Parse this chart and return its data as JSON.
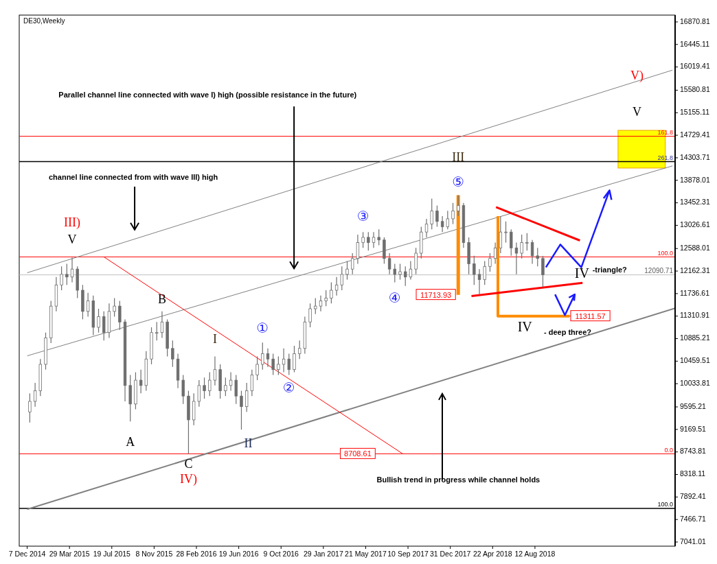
{
  "chart_data": {
    "type": "candlestick",
    "title": "DE30,Weekly",
    "color": "#6e6e6e",
    "xlim": [
      "2014-11-16",
      "2019-08-18"
    ],
    "ylim": [
      6963,
      17000
    ],
    "xticks": [
      {
        "value": "2014-12-07",
        "label": "7 Dec 2014"
      },
      {
        "value": "2015-03-29",
        "label": "29 Mar 2015"
      },
      {
        "value": "2015-07-19",
        "label": "19 Jul 2015"
      },
      {
        "value": "2015-11-08",
        "label": "8 Nov 2015"
      },
      {
        "value": "2016-02-28",
        "label": "28 Feb 2016"
      },
      {
        "value": "2016-06-19",
        "label": "19 Jun 2016"
      },
      {
        "value": "2016-10-09",
        "label": "9 Oct 2016"
      },
      {
        "value": "2017-01-29",
        "label": "29 Jan 2017"
      },
      {
        "value": "2017-05-21",
        "label": "21 May 2017"
      },
      {
        "value": "2017-09-10",
        "label": "10 Sep 2017"
      },
      {
        "value": "2017-12-31",
        "label": "31 Dec 2017"
      },
      {
        "value": "2018-04-22",
        "label": "22 Apr 2018"
      },
      {
        "value": "2018-08-12",
        "label": "12 Aug 2018"
      }
    ],
    "yticks": [
      16870.81,
      16445.11,
      16019.41,
      15580.81,
      15155.11,
      14729.41,
      14303.71,
      13878.01,
      13452.31,
      13026.61,
      12588.01,
      12162.31,
      11736.61,
      11310.91,
      10885.21,
      10459.51,
      10033.81,
      9595.21,
      9169.51,
      8743.81,
      8318.11,
      7892.41,
      7466.71,
      7041.01
    ],
    "x": [
      "2014-12-14",
      "2014-12-28",
      "2015-01-11",
      "2015-01-25",
      "2015-02-08",
      "2015-02-22",
      "2015-03-08",
      "2015-03-22",
      "2015-04-05",
      "2015-04-19",
      "2015-05-03",
      "2015-05-17",
      "2015-05-31",
      "2015-06-14",
      "2015-06-28",
      "2015-07-12",
      "2015-07-26",
      "2015-08-09",
      "2015-08-23",
      "2015-09-06",
      "2015-09-20",
      "2015-10-04",
      "2015-10-18",
      "2015-11-01",
      "2015-11-15",
      "2015-11-29",
      "2015-12-13",
      "2015-12-27",
      "2016-01-10",
      "2016-01-24",
      "2016-02-07",
      "2016-02-21",
      "2016-03-06",
      "2016-03-20",
      "2016-04-03",
      "2016-04-17",
      "2016-05-01",
      "2016-05-15",
      "2016-05-29",
      "2016-06-12",
      "2016-06-26",
      "2016-07-10",
      "2016-07-24",
      "2016-08-07",
      "2016-08-21",
      "2016-09-04",
      "2016-09-18",
      "2016-10-02",
      "2016-10-16",
      "2016-10-30",
      "2016-11-13",
      "2016-11-27",
      "2016-12-11",
      "2016-12-25",
      "2017-01-08",
      "2017-01-22",
      "2017-02-05",
      "2017-02-19",
      "2017-03-05",
      "2017-03-19",
      "2017-04-02",
      "2017-04-16",
      "2017-04-30",
      "2017-05-14",
      "2017-05-28",
      "2017-06-11",
      "2017-06-25",
      "2017-07-09",
      "2017-07-23",
      "2017-08-06",
      "2017-08-20",
      "2017-09-03",
      "2017-09-17",
      "2017-10-01",
      "2017-10-15",
      "2017-10-29",
      "2017-11-12",
      "2017-11-26",
      "2017-12-10",
      "2017-12-24",
      "2018-01-07",
      "2018-01-21",
      "2018-02-04",
      "2018-02-18",
      "2018-03-04",
      "2018-03-18",
      "2018-04-01",
      "2018-04-15",
      "2018-04-29",
      "2018-05-13",
      "2018-05-27",
      "2018-06-10",
      "2018-06-24",
      "2018-07-08",
      "2018-07-22",
      "2018-08-05",
      "2018-08-19",
      "2018-09-02"
    ],
    "ohlc": [
      [
        9500,
        9850,
        9300,
        9700
      ],
      [
        9700,
        10050,
        9600,
        9900
      ],
      [
        9900,
        10500,
        9800,
        10400
      ],
      [
        10400,
        11000,
        10300,
        10900
      ],
      [
        10900,
        11600,
        10800,
        11500
      ],
      [
        11500,
        12050,
        11400,
        11900
      ],
      [
        11900,
        12250,
        11800,
        12100
      ],
      [
        12100,
        12300,
        11900,
        12050
      ],
      [
        12050,
        12415,
        11950,
        12200
      ],
      [
        12200,
        12250,
        11650,
        11800
      ],
      [
        11800,
        11900,
        11250,
        11400
      ],
      [
        11400,
        11750,
        11300,
        11600
      ],
      [
        11600,
        11700,
        10950,
        11100
      ],
      [
        11100,
        11450,
        11000,
        11300
      ],
      [
        11300,
        11400,
        10850,
        11000
      ],
      [
        11000,
        11550,
        10900,
        11400
      ],
      [
        11400,
        11650,
        11300,
        11500
      ],
      [
        11500,
        11600,
        11050,
        11200
      ],
      [
        11200,
        11250,
        9700,
        10000
      ],
      [
        10000,
        10200,
        9320,
        9650
      ],
      [
        9650,
        10250,
        9550,
        10100
      ],
      [
        10100,
        10300,
        9850,
        10000
      ],
      [
        10000,
        10650,
        9900,
        10500
      ],
      [
        10500,
        11100,
        10400,
        11000
      ],
      [
        11000,
        11200,
        10850,
        11000
      ],
      [
        11000,
        11400,
        10900,
        11200
      ],
      [
        11200,
        11250,
        10550,
        10700
      ],
      [
        10700,
        10850,
        10350,
        10500
      ],
      [
        10500,
        10600,
        9950,
        10100
      ],
      [
        10100,
        10200,
        9650,
        9800
      ],
      [
        9800,
        9900,
        8708.61,
        9350
      ],
      [
        9350,
        9850,
        9250,
        9700
      ],
      [
        9700,
        10100,
        9600,
        10000
      ],
      [
        10000,
        10150,
        9750,
        9900
      ],
      [
        9900,
        10250,
        9800,
        10100
      ],
      [
        10100,
        10550,
        10000,
        10300
      ],
      [
        10300,
        10400,
        9750,
        9900
      ],
      [
        9900,
        10150,
        9800,
        10000
      ],
      [
        10000,
        10250,
        9900,
        10100
      ],
      [
        10100,
        10200,
        9650,
        9800
      ],
      [
        9800,
        9900,
        9165,
        9600
      ],
      [
        9600,
        10050,
        9500,
        9900
      ],
      [
        9900,
        10300,
        9800,
        10200
      ],
      [
        10200,
        10550,
        10100,
        10400
      ],
      [
        10400,
        10810,
        10300,
        10600
      ],
      [
        10600,
        10700,
        10350,
        10500
      ],
      [
        10500,
        10600,
        10200,
        10300
      ],
      [
        10300,
        10550,
        10200,
        10400
      ],
      [
        10400,
        10700,
        10250,
        10500
      ],
      [
        10500,
        10600,
        10200,
        10300
      ],
      [
        10300,
        10750,
        10250,
        10600
      ],
      [
        10600,
        10850,
        10500,
        10700
      ],
      [
        10700,
        11300,
        10600,
        11200
      ],
      [
        11200,
        11550,
        11100,
        11450
      ],
      [
        11450,
        11650,
        11350,
        11500
      ],
      [
        11500,
        11700,
        11400,
        11600
      ],
      [
        11600,
        11800,
        11500,
        11650
      ],
      [
        11650,
        11950,
        11550,
        11800
      ],
      [
        11800,
        12050,
        11700,
        11900
      ],
      [
        11900,
        12250,
        11800,
        12100
      ],
      [
        12100,
        12350,
        12000,
        12200
      ],
      [
        12200,
        12500,
        12100,
        12400
      ],
      [
        12400,
        12850,
        12300,
        12700
      ],
      [
        12700,
        12900,
        12600,
        12800
      ],
      [
        12800,
        12900,
        12550,
        12700
      ],
      [
        12700,
        12900,
        12600,
        12800
      ],
      [
        12800,
        12950,
        12650,
        12750
      ],
      [
        12750,
        12800,
        12300,
        12400
      ],
      [
        12400,
        12500,
        12100,
        12200
      ],
      [
        12200,
        12300,
        11950,
        12100
      ],
      [
        12100,
        12300,
        12000,
        12150
      ],
      [
        12150,
        12250,
        11880,
        12050
      ],
      [
        12050,
        12350,
        12000,
        12200
      ],
      [
        12200,
        12600,
        12100,
        12500
      ],
      [
        12500,
        13000,
        12400,
        12900
      ],
      [
        12900,
        13150,
        12800,
        13050
      ],
      [
        13050,
        13530,
        12950,
        13300
      ],
      [
        13300,
        13400,
        13000,
        13100
      ],
      [
        13100,
        13200,
        12900,
        13000
      ],
      [
        13000,
        13300,
        12950,
        13150
      ],
      [
        13150,
        13450,
        13050,
        13300
      ],
      [
        13300,
        13596,
        13200,
        13400
      ],
      [
        13400,
        13450,
        12600,
        12700
      ],
      [
        12700,
        12800,
        12100,
        12300
      ],
      [
        12300,
        12450,
        11900,
        12100
      ],
      [
        12100,
        12200,
        11713.93,
        12000
      ],
      [
        12000,
        12350,
        11900,
        12250
      ],
      [
        12250,
        12500,
        12150,
        12400
      ],
      [
        12400,
        12700,
        12300,
        12600
      ],
      [
        12600,
        13200,
        12500,
        12900
      ],
      [
        12900,
        13100,
        12700,
        12900
      ],
      [
        12900,
        12950,
        12450,
        12600
      ],
      [
        12600,
        12700,
        12100,
        12500
      ],
      [
        12500,
        12850,
        12400,
        12700
      ],
      [
        12700,
        12880,
        12550,
        12700
      ],
      [
        12700,
        12750,
        12300,
        12450
      ],
      [
        12450,
        12600,
        12250,
        12400
      ],
      [
        12400,
        12450,
        11860,
        12090.71
      ]
    ],
    "series": [
      {
        "type": "line",
        "color": "#808080",
        "x": [
          "2014-12-07",
          "2019-08-11"
        ],
        "values": [
          12130,
          15960
        ]
      },
      {
        "type": "line",
        "color": "#808080",
        "x": [
          "2014-12-07",
          "2019-08-11"
        ],
        "values": [
          10560,
          14150
        ]
      },
      {
        "type": "line",
        "color": "#808080",
        "x": [
          "2014-12-07",
          "2019-08-18"
        ],
        "values": [
          7660,
          11460
        ]
      },
      {
        "type": "line",
        "color": "#ff0000",
        "x": [
          "2015-06-28",
          "2017-08-27"
        ],
        "values": [
          12430,
          8708.61
        ]
      },
      {
        "type": "line",
        "color": "#ff8c00",
        "x": [
          "2018-01-21",
          "2018-01-21"
        ],
        "values": [
          13596,
          11713.93
        ]
      },
      {
        "type": "line",
        "color": "#ff8c00",
        "x": [
          "2018-05-06",
          "2018-05-06",
          "2018-11-11"
        ],
        "values": [
          13200,
          11311.57,
          11311.57
        ]
      },
      {
        "type": "line",
        "color": "#ff0000",
        "x": [
          "2018-05-01",
          "2018-12-09"
        ],
        "values": [
          13370,
          12740
        ]
      },
      {
        "type": "line",
        "color": "#ff0000",
        "x": [
          "2018-02-25",
          "2018-12-16"
        ],
        "values": [
          11690,
          11940
        ]
      }
    ],
    "ref_lines": [
      {
        "axis": "y",
        "value": 14710,
        "color": "#ff0000"
      },
      {
        "axis": "y",
        "value": 14230,
        "color": "#000000"
      },
      {
        "axis": "y",
        "value": 12430,
        "color": "#ff0000"
      },
      {
        "axis": "y",
        "value": 12090.71,
        "label": "12090.71",
        "color": "#c0c0c0"
      },
      {
        "axis": "y",
        "value": 8708.61,
        "color": "#ff0000"
      },
      {
        "axis": "y",
        "value": 7675,
        "color": "#000000"
      }
    ],
    "annotations": [
      "Parallel channel line connected with wave I) high (possible resistance in the future)",
      "channel line connected from with wave III) high",
      "Bullish trend in progress while channel holds",
      "IV",
      "-triangle?",
      "- deep three?",
      "V)",
      "V",
      {
        "text": "III)",
        "x": "2015-04-05",
        "y": 12415
      },
      {
        "text": "V",
        "x": "2015-04-05",
        "y": 12415
      },
      {
        "text": "B",
        "x": "2015-11-29",
        "y": 11400
      },
      {
        "text": "A",
        "x": "2015-09-06",
        "y": 9320
      },
      {
        "text": "C",
        "x": "2016-02-07",
        "y": 8708.61
      },
      {
        "text": "IV)",
        "x": "2016-02-07",
        "y": 8708.61
      },
      {
        "text": "I",
        "x": "2016-04-17",
        "y": 10550
      },
      {
        "text": "II",
        "x": "2016-06-26",
        "y": 9165
      },
      {
        "text": "①",
        "x": "2016-08-21",
        "y": 10810
      },
      {
        "text": "②",
        "x": "2016-10-30",
        "y": 10200
      },
      {
        "text": "③",
        "x": "2017-05-14",
        "y": 12900
      },
      {
        "text": "④",
        "x": "2017-08-06",
        "y": 11950
      },
      {
        "text": "⑤",
        "x": "2018-01-21",
        "y": 13596
      },
      {
        "text": "III",
        "x": "2018-01-21",
        "y": 13596
      },
      {
        "text": "IV",
        "x": "2018-06-10",
        "y": 11311.57
      },
      {
        "text": "11713.93",
        "x": "2018-01-21",
        "y": 11713.93
      },
      {
        "text": "11311.57",
        "x": "2018-11-11",
        "y": 11311.57
      },
      {
        "text": "8708.61",
        "x": "2017-04-30",
        "y": 8708.61
      },
      {
        "text": "161.8",
        "x": "2019-08-18",
        "y": 14710
      },
      {
        "text": "261.8",
        "x": "2019-08-18",
        "y": 14230
      },
      {
        "text": "100.0",
        "x": "2019-08-18",
        "y": 12430
      },
      {
        "text": "0.0",
        "x": "2019-08-18",
        "y": 8708.61
      },
      {
        "text": "100.0",
        "x": "2019-08-18",
        "y": 7675
      }
    ]
  }
}
